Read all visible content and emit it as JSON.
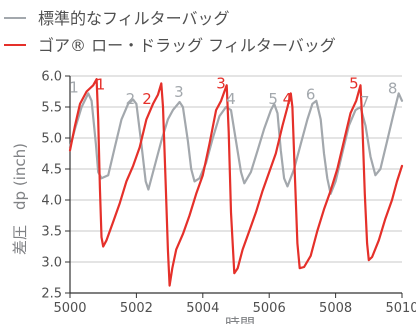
{
  "colors": {
    "standard": "#a3a8ad",
    "gore": "#e5302a",
    "axis": "#333333",
    "grid": "#c8c8c8"
  },
  "chart_data": {
    "type": "line",
    "xlabel": "時間",
    "ylabel": "差圧　dp (inch)",
    "xlim": [
      5000,
      5010
    ],
    "ylim": [
      2.5,
      6.0
    ],
    "x_ticks": [
      "5000",
      "5002",
      "5004",
      "5006",
      "5008",
      "5010"
    ],
    "y_ticks": [
      "2.5",
      "3.0",
      "3.5",
      "4.0",
      "4.5",
      "5.0",
      "5.5",
      "6.0"
    ],
    "grid": "horizontal",
    "legend_position": "top-left",
    "series": [
      {
        "name": "標準的なフィルターバッグ",
        "color_key": "standard",
        "points": [
          [
            5000.0,
            4.85
          ],
          [
            5000.15,
            5.15
          ],
          [
            5000.35,
            5.5
          ],
          [
            5000.55,
            5.72
          ],
          [
            5000.65,
            5.6
          ],
          [
            5000.78,
            4.9
          ],
          [
            5000.85,
            4.45
          ],
          [
            5000.95,
            4.35
          ],
          [
            5001.15,
            4.4
          ],
          [
            5001.35,
            4.85
          ],
          [
            5001.55,
            5.3
          ],
          [
            5001.75,
            5.55
          ],
          [
            5001.9,
            5.62
          ],
          [
            5002.0,
            5.55
          ],
          [
            5002.15,
            4.9
          ],
          [
            5002.28,
            4.3
          ],
          [
            5002.36,
            4.17
          ],
          [
            5002.55,
            4.55
          ],
          [
            5002.75,
            4.95
          ],
          [
            5002.95,
            5.3
          ],
          [
            5003.1,
            5.45
          ],
          [
            5003.3,
            5.58
          ],
          [
            5003.4,
            5.5
          ],
          [
            5003.55,
            4.95
          ],
          [
            5003.65,
            4.5
          ],
          [
            5003.75,
            4.3
          ],
          [
            5003.9,
            4.35
          ],
          [
            5004.1,
            4.6
          ],
          [
            5004.3,
            5.0
          ],
          [
            5004.5,
            5.35
          ],
          [
            5004.7,
            5.5
          ],
          [
            5004.85,
            5.45
          ],
          [
            5005.0,
            4.95
          ],
          [
            5005.15,
            4.45
          ],
          [
            5005.25,
            4.27
          ],
          [
            5005.45,
            4.45
          ],
          [
            5005.65,
            4.8
          ],
          [
            5005.85,
            5.15
          ],
          [
            5006.05,
            5.45
          ],
          [
            5006.15,
            5.55
          ],
          [
            5006.25,
            5.4
          ],
          [
            5006.35,
            4.8
          ],
          [
            5006.45,
            4.35
          ],
          [
            5006.55,
            4.22
          ],
          [
            5006.75,
            4.5
          ],
          [
            5006.95,
            4.9
          ],
          [
            5007.15,
            5.3
          ],
          [
            5007.3,
            5.55
          ],
          [
            5007.42,
            5.6
          ],
          [
            5007.55,
            5.3
          ],
          [
            5007.65,
            4.75
          ],
          [
            5007.75,
            4.35
          ],
          [
            5007.85,
            4.1
          ],
          [
            5008.0,
            4.3
          ],
          [
            5008.2,
            4.75
          ],
          [
            5008.4,
            5.2
          ],
          [
            5008.6,
            5.45
          ],
          [
            5008.75,
            5.5
          ],
          [
            5008.9,
            5.2
          ],
          [
            5009.05,
            4.7
          ],
          [
            5009.2,
            4.4
          ],
          [
            5009.35,
            4.5
          ],
          [
            5009.55,
            4.95
          ],
          [
            5009.75,
            5.4
          ],
          [
            5009.9,
            5.72
          ],
          [
            5010.0,
            5.6
          ]
        ]
      },
      {
        "name": "ゴア® ロー・ドラッグ フィルターバッグ",
        "color_key": "gore",
        "points": [
          [
            5000.0,
            4.8
          ],
          [
            5000.15,
            5.2
          ],
          [
            5000.3,
            5.55
          ],
          [
            5000.5,
            5.75
          ],
          [
            5000.7,
            5.85
          ],
          [
            5000.8,
            5.95
          ],
          [
            5000.85,
            5.3
          ],
          [
            5000.9,
            4.2
          ],
          [
            5000.95,
            3.4
          ],
          [
            5001.0,
            3.25
          ],
          [
            5001.1,
            3.35
          ],
          [
            5001.3,
            3.65
          ],
          [
            5001.5,
            3.95
          ],
          [
            5001.7,
            4.3
          ],
          [
            5001.9,
            4.55
          ],
          [
            5002.1,
            4.85
          ],
          [
            5002.3,
            5.3
          ],
          [
            5002.5,
            5.55
          ],
          [
            5002.65,
            5.7
          ],
          [
            5002.75,
            5.88
          ],
          [
            5002.8,
            5.5
          ],
          [
            5002.88,
            4.3
          ],
          [
            5002.95,
            3.2
          ],
          [
            5003.0,
            2.62
          ],
          [
            5003.08,
            2.9
          ],
          [
            5003.2,
            3.2
          ],
          [
            5003.4,
            3.45
          ],
          [
            5003.6,
            3.75
          ],
          [
            5003.8,
            4.1
          ],
          [
            5004.0,
            4.4
          ],
          [
            5004.2,
            4.9
          ],
          [
            5004.4,
            5.45
          ],
          [
            5004.55,
            5.6
          ],
          [
            5004.65,
            5.75
          ],
          [
            5004.72,
            5.85
          ],
          [
            5004.78,
            5.1
          ],
          [
            5004.85,
            3.8
          ],
          [
            5004.95,
            2.82
          ],
          [
            5005.05,
            2.9
          ],
          [
            5005.2,
            3.2
          ],
          [
            5005.4,
            3.5
          ],
          [
            5005.6,
            3.8
          ],
          [
            5005.8,
            4.15
          ],
          [
            5006.0,
            4.45
          ],
          [
            5006.2,
            4.75
          ],
          [
            5006.4,
            5.2
          ],
          [
            5006.55,
            5.5
          ],
          [
            5006.65,
            5.72
          ],
          [
            5006.7,
            5.5
          ],
          [
            5006.78,
            4.3
          ],
          [
            5006.85,
            3.3
          ],
          [
            5006.92,
            2.9
          ],
          [
            5007.05,
            2.92
          ],
          [
            5007.25,
            3.1
          ],
          [
            5007.45,
            3.5
          ],
          [
            5007.65,
            3.85
          ],
          [
            5007.85,
            4.15
          ],
          [
            5008.05,
            4.5
          ],
          [
            5008.25,
            4.95
          ],
          [
            5008.45,
            5.4
          ],
          [
            5008.62,
            5.6
          ],
          [
            5008.75,
            5.85
          ],
          [
            5008.8,
            5.3
          ],
          [
            5008.88,
            4.1
          ],
          [
            5008.95,
            3.3
          ],
          [
            5009.0,
            3.03
          ],
          [
            5009.1,
            3.08
          ],
          [
            5009.3,
            3.35
          ],
          [
            5009.5,
            3.7
          ],
          [
            5009.7,
            4.0
          ],
          [
            5009.85,
            4.3
          ],
          [
            5010.0,
            4.55
          ]
        ]
      }
    ],
    "peak_labels": [
      {
        "text": "1",
        "series": 0,
        "x": 5000.12,
        "y": 5.73
      },
      {
        "text": "1",
        "series": 1,
        "x": 5000.92,
        "y": 5.78
      },
      {
        "text": "2",
        "series": 0,
        "x": 5001.82,
        "y": 5.55
      },
      {
        "text": "2",
        "series": 1,
        "x": 5002.32,
        "y": 5.55
      },
      {
        "text": "3",
        "series": 0,
        "x": 5003.28,
        "y": 5.66
      },
      {
        "text": "3",
        "series": 1,
        "x": 5004.55,
        "y": 5.8
      },
      {
        "text": "4",
        "series": 0,
        "x": 5004.85,
        "y": 5.55
      },
      {
        "text": "4",
        "series": 1,
        "x": 5006.55,
        "y": 5.55
      },
      {
        "text": "5",
        "series": 0,
        "x": 5006.12,
        "y": 5.55
      },
      {
        "text": "5",
        "series": 1,
        "x": 5008.55,
        "y": 5.8
      },
      {
        "text": "6",
        "series": 0,
        "x": 5007.25,
        "y": 5.62
      },
      {
        "text": "7",
        "series": 0,
        "x": 5008.88,
        "y": 5.5
      },
      {
        "text": "8",
        "series": 0,
        "x": 5009.72,
        "y": 5.72
      }
    ]
  }
}
